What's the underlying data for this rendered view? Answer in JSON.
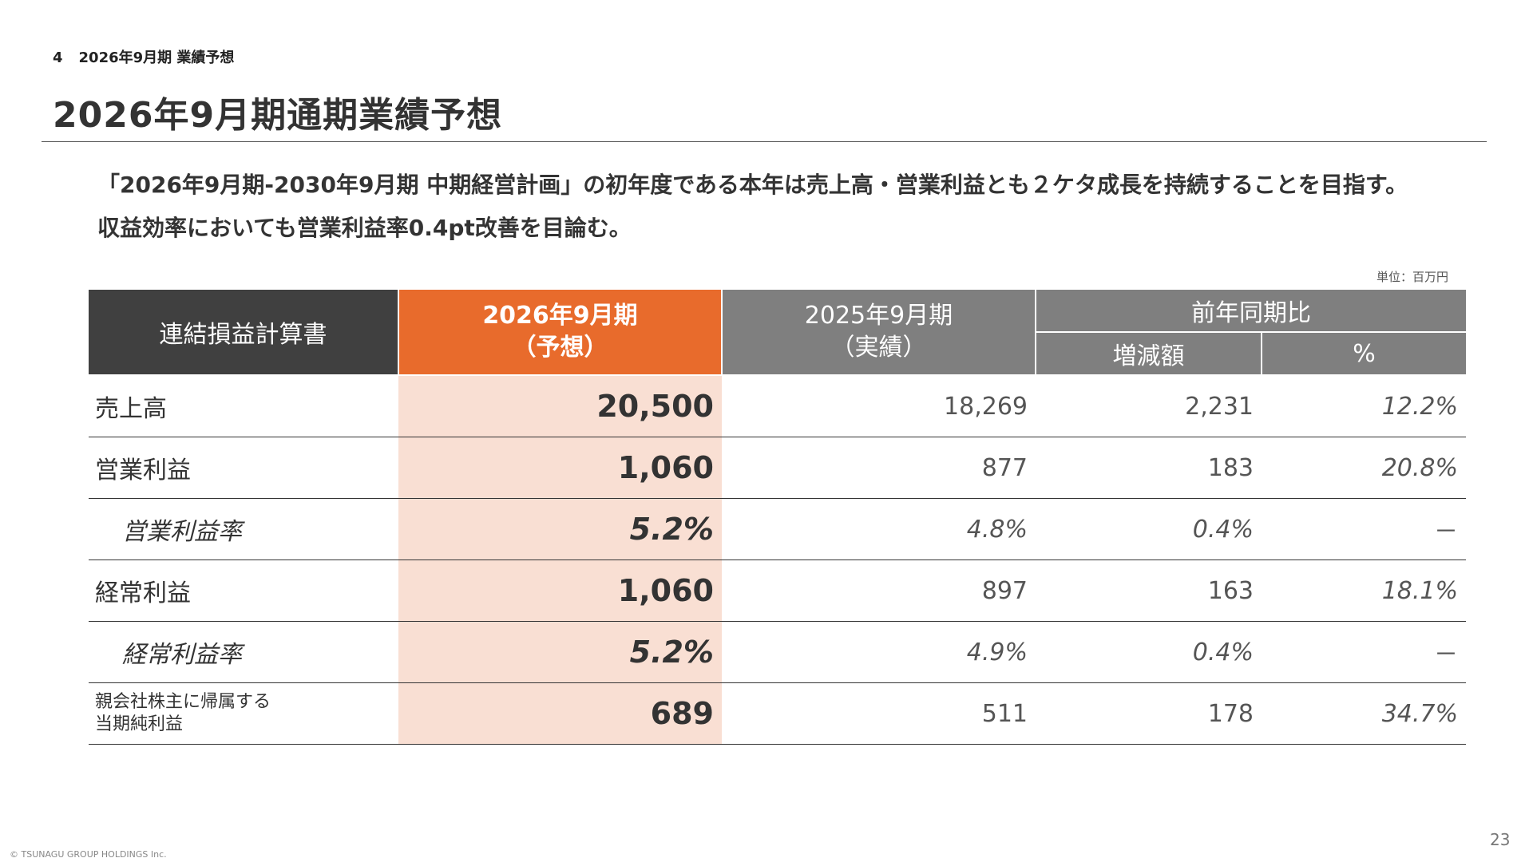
{
  "header": {
    "section_number": "4",
    "section_title": "2026年9月期 業績予想",
    "title": "2026年9月期通期業績予想"
  },
  "lead": {
    "line1": "「2026年9月期-2030年9月期 中期経営計画」の初年度である本年は売上高・営業利益とも２ケタ成長を持続することを目指す。",
    "line2": "収益効率においても営業利益率0.4pt改善を目論む。"
  },
  "unit_label": "単位：百万円",
  "table": {
    "headers": {
      "statement": "連結損益計算書",
      "forecast_line1": "2026年9月期",
      "forecast_line2": "（予想）",
      "actual_line1": "2025年9月期",
      "actual_line2": "（実績）",
      "yoy": "前年同期比",
      "change": "増減額",
      "pct": "%"
    },
    "rows": [
      {
        "label": "売上高",
        "forecast": "20,500",
        "actual": "18,269",
        "change": "2,231",
        "pct": "12.2%"
      },
      {
        "label": "営業利益",
        "forecast": "1,060",
        "actual": "877",
        "change": "183",
        "pct": "20.8%"
      },
      {
        "label": "営業利益率",
        "forecast": "5.2%",
        "actual": "4.8%",
        "change": "0.4%",
        "pct": "－"
      },
      {
        "label": "経常利益",
        "forecast": "1,060",
        "actual": "897",
        "change": "163",
        "pct": "18.1%"
      },
      {
        "label": "経常利益率",
        "forecast": "5.2%",
        "actual": "4.9%",
        "change": "0.4%",
        "pct": "－"
      },
      {
        "label_line1": "親会社株主に帰属する",
        "label_line2": "当期純利益",
        "forecast": "689",
        "actual": "511",
        "change": "178",
        "pct": "34.7%"
      }
    ]
  },
  "footer": {
    "copyright": "© TSUNAGU GROUP HOLDINGS Inc.",
    "page_number": "23"
  },
  "colors": {
    "accent": "#E86B2C",
    "accent_light": "#F9DFD3",
    "header_dark": "#404040",
    "header_gray": "#7F7F7F"
  }
}
